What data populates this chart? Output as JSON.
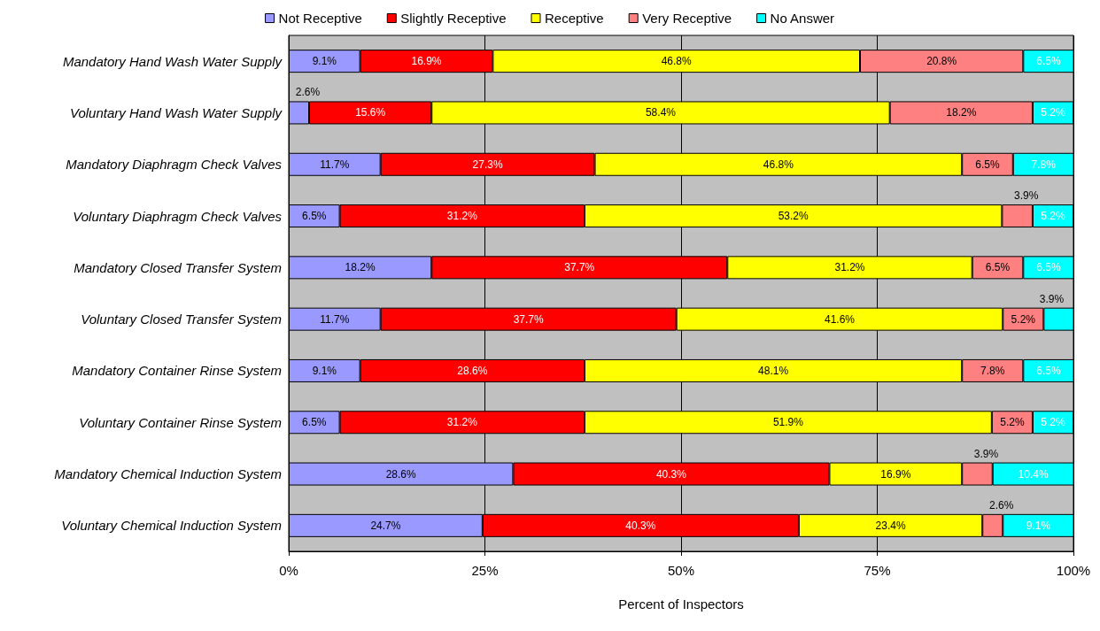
{
  "chart_data": {
    "type": "bar",
    "orientation": "horizontal",
    "stacked": true,
    "xlabel": "Percent of Inspectors",
    "categories": [
      "Mandatory Hand Wash Water Supply",
      "Voluntary Hand Wash Water Supply",
      "Mandatory Diaphragm Check Valves",
      "Voluntary Diaphragm Check Valves",
      "Mandatory Closed Transfer System",
      "Voluntary Closed Transfer System",
      "Mandatory Container Rinse System",
      "Voluntary Container Rinse System",
      "Mandatory Chemical Induction System",
      "Voluntary Chemical Induction System"
    ],
    "series": [
      {
        "name": "Not Receptive",
        "color": "#9999ff",
        "values": [
          9.1,
          2.6,
          11.7,
          6.5,
          18.2,
          11.7,
          9.1,
          6.5,
          28.6,
          24.7
        ],
        "value_labels": [
          "9.1%",
          "2.6%",
          "11.7%",
          "6.5%",
          "18.2%",
          "11.7%",
          "9.1%",
          "6.5%",
          "28.6%",
          "24.7%"
        ]
      },
      {
        "name": "Slightly Receptive",
        "color": "#ff0000",
        "values": [
          16.9,
          15.6,
          27.3,
          31.2,
          37.7,
          37.7,
          28.6,
          31.2,
          40.3,
          40.3
        ],
        "value_labels": [
          "16.9%",
          "15.6%",
          "27.3%",
          "31.2%",
          "37.7%",
          "37.7%",
          "28.6%",
          "31.2%",
          "40.3%",
          "40.3%"
        ]
      },
      {
        "name": "Receptive",
        "color": "#ffff00",
        "values": [
          46.8,
          58.4,
          46.8,
          53.2,
          31.2,
          41.6,
          48.1,
          51.9,
          16.9,
          23.4
        ],
        "value_labels": [
          "46.8%",
          "58.4%",
          "46.8%",
          "53.2%",
          "31.2%",
          "41.6%",
          "48.1%",
          "51.9%",
          "16.9%",
          "23.4%"
        ]
      },
      {
        "name": "Very Receptive",
        "color": "#ff8080",
        "values": [
          20.8,
          18.2,
          6.5,
          3.9,
          6.5,
          5.2,
          7.8,
          5.2,
          3.9,
          2.6
        ],
        "value_labels": [
          "20.8%",
          "18.2%",
          "6.5%",
          "3.9%",
          "6.5%",
          "5.2%",
          "7.8%",
          "5.2%",
          "3.9%",
          "2.6%"
        ]
      },
      {
        "name": "No Answer",
        "color": "#00ffff",
        "values": [
          6.5,
          5.2,
          7.8,
          5.2,
          6.5,
          3.9,
          6.5,
          5.2,
          10.4,
          9.1
        ],
        "value_labels": [
          "6.5%",
          "5.2%",
          "7.8%",
          "5.2%",
          "6.5%",
          "3.9%",
          "6.5%",
          "5.2%",
          "10.4%",
          "9.1%"
        ]
      }
    ],
    "xlim": [
      0,
      100
    ],
    "xticks": [
      {
        "value": 0,
        "label": "0%"
      },
      {
        "value": 25,
        "label": "25%"
      },
      {
        "value": 50,
        "label": "50%"
      },
      {
        "value": 75,
        "label": "75%"
      },
      {
        "value": 100,
        "label": "100%"
      }
    ],
    "grid": "x",
    "legend": "top"
  }
}
